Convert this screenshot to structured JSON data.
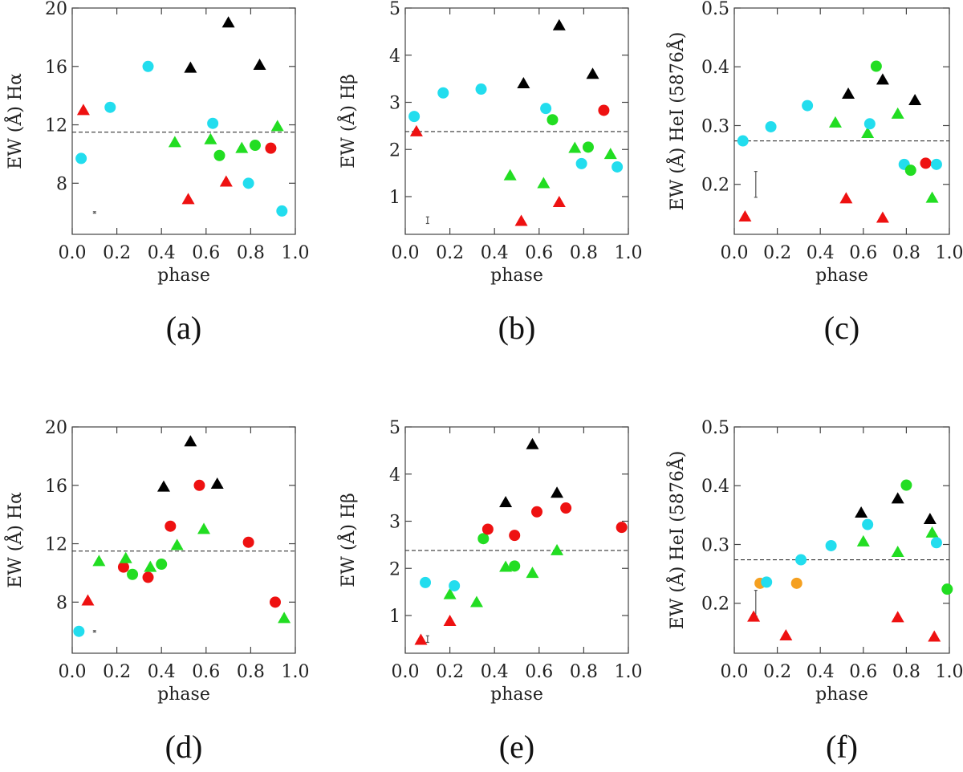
{
  "colors": {
    "black": "#000000",
    "red": "#ee1111",
    "green": "#22dd22",
    "cyan": "#22ddee",
    "orange": "#f5a020"
  },
  "chart_data": [
    {
      "type": "scatter",
      "panel": "(a)",
      "xlabel": "phase",
      "ylabel": "EW (Å) Hα",
      "xlim": [
        0.0,
        1.0
      ],
      "ylim": [
        4.5,
        20.0
      ],
      "xticks": [
        0.0,
        0.2,
        0.4,
        0.6,
        0.8,
        1.0
      ],
      "xtick_labels": [
        "0.0",
        "0.2",
        "0.4",
        "0.6",
        "0.8",
        "1.0"
      ],
      "yticks": [
        8,
        12,
        16,
        20
      ],
      "ytick_labels": [
        "8",
        "12",
        "16",
        "20"
      ],
      "hline": 11.5,
      "errbar": {
        "x": 0.1,
        "y": 6.0,
        "err": 0.05
      },
      "points": [
        {
          "x": 0.05,
          "y": 13.0,
          "color": "red",
          "marker": "triangle"
        },
        {
          "x": 0.04,
          "y": 9.7,
          "color": "cyan",
          "marker": "circle"
        },
        {
          "x": 0.17,
          "y": 13.2,
          "color": "cyan",
          "marker": "circle"
        },
        {
          "x": 0.34,
          "y": 16.0,
          "color": "cyan",
          "marker": "circle"
        },
        {
          "x": 0.46,
          "y": 10.8,
          "color": "green",
          "marker": "triangle"
        },
        {
          "x": 0.52,
          "y": 6.9,
          "color": "red",
          "marker": "triangle"
        },
        {
          "x": 0.53,
          "y": 15.9,
          "color": "black",
          "marker": "triangle"
        },
        {
          "x": 0.62,
          "y": 11.0,
          "color": "green",
          "marker": "triangle"
        },
        {
          "x": 0.63,
          "y": 12.1,
          "color": "cyan",
          "marker": "circle"
        },
        {
          "x": 0.66,
          "y": 9.9,
          "color": "green",
          "marker": "circle"
        },
        {
          "x": 0.69,
          "y": 8.1,
          "color": "red",
          "marker": "triangle"
        },
        {
          "x": 0.7,
          "y": 19.0,
          "color": "black",
          "marker": "triangle"
        },
        {
          "x": 0.76,
          "y": 10.4,
          "color": "green",
          "marker": "triangle"
        },
        {
          "x": 0.79,
          "y": 8.0,
          "color": "cyan",
          "marker": "circle"
        },
        {
          "x": 0.82,
          "y": 10.6,
          "color": "green",
          "marker": "circle"
        },
        {
          "x": 0.84,
          "y": 16.1,
          "color": "black",
          "marker": "triangle"
        },
        {
          "x": 0.89,
          "y": 10.4,
          "color": "red",
          "marker": "circle"
        },
        {
          "x": 0.92,
          "y": 11.9,
          "color": "green",
          "marker": "triangle"
        },
        {
          "x": 0.94,
          "y": 6.1,
          "color": "cyan",
          "marker": "circle"
        }
      ]
    },
    {
      "type": "scatter",
      "panel": "(b)",
      "xlabel": "phase",
      "ylabel": "EW (Å) Hβ",
      "xlim": [
        0.0,
        1.0
      ],
      "ylim": [
        0.2,
        5.0
      ],
      "xticks": [
        0.0,
        0.2,
        0.4,
        0.6,
        0.8,
        1.0
      ],
      "xtick_labels": [
        "0.0",
        "0.2",
        "0.4",
        "0.6",
        "0.8",
        "1.0"
      ],
      "yticks": [
        1,
        2,
        3,
        4,
        5
      ],
      "ytick_labels": [
        "1",
        "2",
        "3",
        "4",
        "5"
      ],
      "hline": 2.38,
      "errbar": {
        "x": 0.1,
        "y": 0.5,
        "err": 0.07
      },
      "points": [
        {
          "x": 0.04,
          "y": 2.7,
          "color": "cyan",
          "marker": "circle"
        },
        {
          "x": 0.05,
          "y": 2.38,
          "color": "red",
          "marker": "triangle"
        },
        {
          "x": 0.17,
          "y": 3.2,
          "color": "cyan",
          "marker": "circle"
        },
        {
          "x": 0.34,
          "y": 3.28,
          "color": "cyan",
          "marker": "circle"
        },
        {
          "x": 0.47,
          "y": 1.45,
          "color": "green",
          "marker": "triangle"
        },
        {
          "x": 0.52,
          "y": 0.48,
          "color": "red",
          "marker": "triangle"
        },
        {
          "x": 0.53,
          "y": 3.4,
          "color": "black",
          "marker": "triangle"
        },
        {
          "x": 0.62,
          "y": 1.28,
          "color": "green",
          "marker": "triangle"
        },
        {
          "x": 0.63,
          "y": 2.87,
          "color": "cyan",
          "marker": "circle"
        },
        {
          "x": 0.66,
          "y": 2.63,
          "color": "green",
          "marker": "circle"
        },
        {
          "x": 0.69,
          "y": 0.88,
          "color": "red",
          "marker": "triangle"
        },
        {
          "x": 0.69,
          "y": 4.63,
          "color": "black",
          "marker": "triangle"
        },
        {
          "x": 0.76,
          "y": 2.03,
          "color": "green",
          "marker": "triangle"
        },
        {
          "x": 0.79,
          "y": 1.7,
          "color": "cyan",
          "marker": "circle"
        },
        {
          "x": 0.82,
          "y": 2.05,
          "color": "green",
          "marker": "circle"
        },
        {
          "x": 0.84,
          "y": 3.6,
          "color": "black",
          "marker": "triangle"
        },
        {
          "x": 0.89,
          "y": 2.83,
          "color": "red",
          "marker": "circle"
        },
        {
          "x": 0.92,
          "y": 1.9,
          "color": "green",
          "marker": "triangle"
        },
        {
          "x": 0.95,
          "y": 1.63,
          "color": "cyan",
          "marker": "circle"
        }
      ]
    },
    {
      "type": "scatter",
      "panel": "(c)",
      "xlabel": "phase",
      "ylabel": "EW (Å) HeI (5876Å)",
      "xlim": [
        0.0,
        1.0
      ],
      "ylim": [
        0.115,
        0.5
      ],
      "xticks": [
        0.0,
        0.2,
        0.4,
        0.6,
        0.8,
        1.0
      ],
      "xtick_labels": [
        "0.0",
        "0.2",
        "0.4",
        "0.6",
        "0.8",
        "1.0"
      ],
      "yticks": [
        0.2,
        0.3,
        0.4,
        0.5
      ],
      "ytick_labels": [
        "0.2",
        "0.3",
        "0.4",
        "0.5"
      ],
      "hline": 0.274,
      "errbar": {
        "x": 0.1,
        "y": 0.2,
        "err": 0.022
      },
      "points": [
        {
          "x": 0.04,
          "y": 0.274,
          "color": "cyan",
          "marker": "circle"
        },
        {
          "x": 0.05,
          "y": 0.145,
          "color": "red",
          "marker": "triangle"
        },
        {
          "x": 0.17,
          "y": 0.298,
          "color": "cyan",
          "marker": "circle"
        },
        {
          "x": 0.34,
          "y": 0.334,
          "color": "cyan",
          "marker": "circle"
        },
        {
          "x": 0.47,
          "y": 0.305,
          "color": "green",
          "marker": "triangle"
        },
        {
          "x": 0.52,
          "y": 0.176,
          "color": "red",
          "marker": "triangle"
        },
        {
          "x": 0.53,
          "y": 0.354,
          "color": "black",
          "marker": "triangle"
        },
        {
          "x": 0.62,
          "y": 0.287,
          "color": "green",
          "marker": "triangle"
        },
        {
          "x": 0.63,
          "y": 0.303,
          "color": "cyan",
          "marker": "circle"
        },
        {
          "x": 0.66,
          "y": 0.401,
          "color": "green",
          "marker": "circle"
        },
        {
          "x": 0.69,
          "y": 0.143,
          "color": "red",
          "marker": "triangle"
        },
        {
          "x": 0.69,
          "y": 0.378,
          "color": "black",
          "marker": "triangle"
        },
        {
          "x": 0.76,
          "y": 0.32,
          "color": "green",
          "marker": "triangle"
        },
        {
          "x": 0.79,
          "y": 0.234,
          "color": "cyan",
          "marker": "circle"
        },
        {
          "x": 0.82,
          "y": 0.224,
          "color": "green",
          "marker": "circle"
        },
        {
          "x": 0.84,
          "y": 0.343,
          "color": "black",
          "marker": "triangle"
        },
        {
          "x": 0.89,
          "y": 0.236,
          "color": "red",
          "marker": "circle"
        },
        {
          "x": 0.92,
          "y": 0.177,
          "color": "green",
          "marker": "triangle"
        },
        {
          "x": 0.94,
          "y": 0.234,
          "color": "cyan",
          "marker": "circle"
        }
      ]
    },
    {
      "type": "scatter",
      "panel": "(d)",
      "xlabel": "phase",
      "ylabel": "EW (Å) Hα",
      "xlim": [
        0.0,
        1.0
      ],
      "ylim": [
        4.5,
        20.0
      ],
      "xticks": [
        0.0,
        0.2,
        0.4,
        0.6,
        0.8,
        1.0
      ],
      "xtick_labels": [
        "0.0",
        "0.2",
        "0.4",
        "0.6",
        "0.8",
        "1.0"
      ],
      "yticks": [
        8,
        12,
        16,
        20
      ],
      "ytick_labels": [
        "8",
        "12",
        "16",
        "20"
      ],
      "hline": 11.5,
      "errbar": {
        "x": 0.1,
        "y": 6.0,
        "err": 0.05
      },
      "points": [
        {
          "x": 0.03,
          "y": 6.0,
          "color": "cyan",
          "marker": "circle"
        },
        {
          "x": 0.07,
          "y": 8.1,
          "color": "red",
          "marker": "triangle"
        },
        {
          "x": 0.12,
          "y": 10.8,
          "color": "green",
          "marker": "triangle"
        },
        {
          "x": 0.23,
          "y": 10.4,
          "color": "red",
          "marker": "circle"
        },
        {
          "x": 0.24,
          "y": 11.0,
          "color": "green",
          "marker": "triangle"
        },
        {
          "x": 0.27,
          "y": 9.9,
          "color": "green",
          "marker": "circle"
        },
        {
          "x": 0.34,
          "y": 9.7,
          "color": "red",
          "marker": "circle"
        },
        {
          "x": 0.35,
          "y": 10.4,
          "color": "green",
          "marker": "triangle"
        },
        {
          "x": 0.4,
          "y": 10.6,
          "color": "green",
          "marker": "circle"
        },
        {
          "x": 0.41,
          "y": 15.9,
          "color": "black",
          "marker": "triangle"
        },
        {
          "x": 0.44,
          "y": 13.2,
          "color": "red",
          "marker": "circle"
        },
        {
          "x": 0.47,
          "y": 11.9,
          "color": "green",
          "marker": "triangle"
        },
        {
          "x": 0.53,
          "y": 19.0,
          "color": "black",
          "marker": "triangle"
        },
        {
          "x": 0.57,
          "y": 16.0,
          "color": "red",
          "marker": "circle"
        },
        {
          "x": 0.59,
          "y": 13.0,
          "color": "green",
          "marker": "triangle"
        },
        {
          "x": 0.65,
          "y": 16.1,
          "color": "black",
          "marker": "triangle"
        },
        {
          "x": 0.79,
          "y": 12.1,
          "color": "red",
          "marker": "circle"
        },
        {
          "x": 0.91,
          "y": 8.0,
          "color": "red",
          "marker": "circle"
        },
        {
          "x": 0.95,
          "y": 6.9,
          "color": "green",
          "marker": "triangle"
        }
      ]
    },
    {
      "type": "scatter",
      "panel": "(e)",
      "xlabel": "phase",
      "ylabel": "EW (Å) Hβ",
      "xlim": [
        0.0,
        1.0
      ],
      "ylim": [
        0.2,
        5.0
      ],
      "xticks": [
        0.0,
        0.2,
        0.4,
        0.6,
        0.8,
        1.0
      ],
      "xtick_labels": [
        "0.0",
        "0.2",
        "0.4",
        "0.6",
        "0.8",
        "1.0"
      ],
      "yticks": [
        1,
        2,
        3,
        4,
        5
      ],
      "ytick_labels": [
        "1",
        "2",
        "3",
        "4",
        "5"
      ],
      "hline": 2.38,
      "errbar": {
        "x": 0.1,
        "y": 0.5,
        "err": 0.07
      },
      "points": [
        {
          "x": 0.07,
          "y": 0.48,
          "color": "red",
          "marker": "triangle"
        },
        {
          "x": 0.09,
          "y": 1.7,
          "color": "cyan",
          "marker": "circle"
        },
        {
          "x": 0.2,
          "y": 0.88,
          "color": "red",
          "marker": "triangle"
        },
        {
          "x": 0.2,
          "y": 1.45,
          "color": "green",
          "marker": "triangle"
        },
        {
          "x": 0.22,
          "y": 1.63,
          "color": "cyan",
          "marker": "circle"
        },
        {
          "x": 0.32,
          "y": 1.28,
          "color": "green",
          "marker": "triangle"
        },
        {
          "x": 0.35,
          "y": 2.63,
          "color": "green",
          "marker": "circle"
        },
        {
          "x": 0.37,
          "y": 2.83,
          "color": "red",
          "marker": "circle"
        },
        {
          "x": 0.45,
          "y": 2.03,
          "color": "green",
          "marker": "triangle"
        },
        {
          "x": 0.45,
          "y": 3.4,
          "color": "black",
          "marker": "triangle"
        },
        {
          "x": 0.49,
          "y": 2.05,
          "color": "green",
          "marker": "circle"
        },
        {
          "x": 0.49,
          "y": 2.7,
          "color": "red",
          "marker": "circle"
        },
        {
          "x": 0.57,
          "y": 1.9,
          "color": "green",
          "marker": "triangle"
        },
        {
          "x": 0.57,
          "y": 4.63,
          "color": "black",
          "marker": "triangle"
        },
        {
          "x": 0.59,
          "y": 3.2,
          "color": "red",
          "marker": "circle"
        },
        {
          "x": 0.68,
          "y": 2.38,
          "color": "green",
          "marker": "triangle"
        },
        {
          "x": 0.68,
          "y": 3.6,
          "color": "black",
          "marker": "triangle"
        },
        {
          "x": 0.72,
          "y": 3.28,
          "color": "red",
          "marker": "circle"
        },
        {
          "x": 0.97,
          "y": 2.87,
          "color": "red",
          "marker": "circle"
        }
      ]
    },
    {
      "type": "scatter",
      "panel": "(f)",
      "xlabel": "phase",
      "ylabel": "EW (Å) HeI (5876Å)",
      "xlim": [
        0.0,
        1.0
      ],
      "ylim": [
        0.115,
        0.5
      ],
      "xticks": [
        0.0,
        0.2,
        0.4,
        0.6,
        0.8,
        1.0
      ],
      "xtick_labels": [
        "0.0",
        "0.2",
        "0.4",
        "0.6",
        "0.8",
        "1.0"
      ],
      "yticks": [
        0.2,
        0.3,
        0.4,
        0.5
      ],
      "ytick_labels": [
        "0.2",
        "0.3",
        "0.4",
        "0.5"
      ],
      "hline": 0.274,
      "errbar": {
        "x": 0.1,
        "y": 0.2,
        "err": 0.022
      },
      "points": [
        {
          "x": 0.09,
          "y": 0.177,
          "color": "red",
          "marker": "triangle"
        },
        {
          "x": 0.12,
          "y": 0.234,
          "color": "orange",
          "marker": "circle"
        },
        {
          "x": 0.15,
          "y": 0.236,
          "color": "cyan",
          "marker": "circle"
        },
        {
          "x": 0.24,
          "y": 0.145,
          "color": "red",
          "marker": "triangle"
        },
        {
          "x": 0.29,
          "y": 0.234,
          "color": "orange",
          "marker": "circle"
        },
        {
          "x": 0.31,
          "y": 0.274,
          "color": "cyan",
          "marker": "circle"
        },
        {
          "x": 0.45,
          "y": 0.298,
          "color": "cyan",
          "marker": "circle"
        },
        {
          "x": 0.59,
          "y": 0.354,
          "color": "black",
          "marker": "triangle"
        },
        {
          "x": 0.6,
          "y": 0.305,
          "color": "green",
          "marker": "triangle"
        },
        {
          "x": 0.62,
          "y": 0.334,
          "color": "cyan",
          "marker": "circle"
        },
        {
          "x": 0.76,
          "y": 0.378,
          "color": "black",
          "marker": "triangle"
        },
        {
          "x": 0.76,
          "y": 0.287,
          "color": "green",
          "marker": "triangle"
        },
        {
          "x": 0.76,
          "y": 0.176,
          "color": "red",
          "marker": "triangle"
        },
        {
          "x": 0.8,
          "y": 0.401,
          "color": "green",
          "marker": "circle"
        },
        {
          "x": 0.91,
          "y": 0.343,
          "color": "black",
          "marker": "triangle"
        },
        {
          "x": 0.92,
          "y": 0.32,
          "color": "green",
          "marker": "triangle"
        },
        {
          "x": 0.93,
          "y": 0.143,
          "color": "red",
          "marker": "triangle"
        },
        {
          "x": 0.94,
          "y": 0.303,
          "color": "cyan",
          "marker": "circle"
        },
        {
          "x": 0.99,
          "y": 0.224,
          "color": "green",
          "marker": "circle"
        }
      ]
    }
  ]
}
